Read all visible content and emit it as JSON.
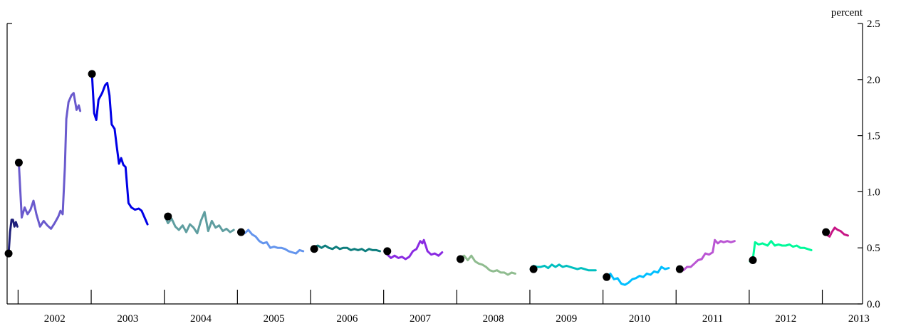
{
  "chart_data": {
    "type": "line",
    "title": "",
    "xlabel": "",
    "ylabel": "percent",
    "y_axis_side": "right",
    "ylim": [
      0.0,
      2.5
    ],
    "y_ticks": [
      0.0,
      0.5,
      1.0,
      1.5,
      2.0,
      2.5
    ],
    "y_tick_labels": [
      "0.0",
      "0.5",
      "1.0",
      "1.5",
      "2.0",
      "2.5"
    ],
    "xlim": [
      2001.6,
      2013.3
    ],
    "x_tick_labels": [
      "2002",
      "2003",
      "2004",
      "2005",
      "2006",
      "2007",
      "2008",
      "2009",
      "2010",
      "2011",
      "2012",
      "2013"
    ],
    "x_year_boundaries": [
      2001.75,
      2002.75,
      2003.75,
      2004.75,
      2005.75,
      2006.75,
      2007.75,
      2008.75,
      2009.75,
      2010.75,
      2011.75,
      2012.75
    ],
    "grid": false,
    "legend": "none",
    "series": [
      {
        "color": "#1f1f7a",
        "points": [
          [
            2001.62,
            0.45
          ],
          [
            2001.64,
            0.64
          ],
          [
            2001.66,
            0.75
          ],
          [
            2001.68,
            0.75
          ],
          [
            2001.7,
            0.69
          ],
          [
            2001.72,
            0.73
          ],
          [
            2001.74,
            0.69
          ]
        ]
      },
      {
        "color": "#6a5acd",
        "points": [
          [
            2001.76,
            1.26
          ],
          [
            2001.8,
            0.77
          ],
          [
            2001.84,
            0.86
          ],
          [
            2001.88,
            0.8
          ],
          [
            2001.92,
            0.84
          ],
          [
            2001.96,
            0.92
          ],
          [
            2002.0,
            0.8
          ],
          [
            2002.05,
            0.69
          ],
          [
            2002.1,
            0.74
          ],
          [
            2002.15,
            0.7
          ],
          [
            2002.2,
            0.67
          ],
          [
            2002.25,
            0.72
          ],
          [
            2002.3,
            0.78
          ],
          [
            2002.33,
            0.83
          ],
          [
            2002.36,
            0.8
          ],
          [
            2002.39,
            1.22
          ],
          [
            2002.41,
            1.65
          ],
          [
            2002.44,
            1.8
          ],
          [
            2002.48,
            1.86
          ],
          [
            2002.51,
            1.88
          ],
          [
            2002.55,
            1.73
          ],
          [
            2002.58,
            1.77
          ],
          [
            2002.6,
            1.72
          ]
        ]
      },
      {
        "color": "#0000e6",
        "points": [
          [
            2002.76,
            2.05
          ],
          [
            2002.79,
            1.7
          ],
          [
            2002.82,
            1.64
          ],
          [
            2002.85,
            1.82
          ],
          [
            2002.9,
            1.88
          ],
          [
            2002.94,
            1.95
          ],
          [
            2002.97,
            1.97
          ],
          [
            2003.0,
            1.86
          ],
          [
            2003.03,
            1.6
          ],
          [
            2003.07,
            1.56
          ],
          [
            2003.1,
            1.4
          ],
          [
            2003.13,
            1.25
          ],
          [
            2003.16,
            1.3
          ],
          [
            2003.19,
            1.24
          ],
          [
            2003.22,
            1.22
          ],
          [
            2003.26,
            0.9
          ],
          [
            2003.3,
            0.86
          ],
          [
            2003.35,
            0.84
          ],
          [
            2003.4,
            0.85
          ],
          [
            2003.44,
            0.83
          ],
          [
            2003.48,
            0.77
          ],
          [
            2003.52,
            0.71
          ]
        ]
      },
      {
        "color": "#5f9ea0",
        "points": [
          [
            2003.76,
            0.78
          ],
          [
            2003.8,
            0.72
          ],
          [
            2003.85,
            0.76
          ],
          [
            2003.9,
            0.69
          ],
          [
            2003.95,
            0.66
          ],
          [
            2004.0,
            0.7
          ],
          [
            2004.05,
            0.64
          ],
          [
            2004.1,
            0.71
          ],
          [
            2004.15,
            0.68
          ],
          [
            2004.2,
            0.63
          ],
          [
            2004.25,
            0.74
          ],
          [
            2004.3,
            0.82
          ],
          [
            2004.35,
            0.65
          ],
          [
            2004.4,
            0.74
          ],
          [
            2004.45,
            0.68
          ],
          [
            2004.5,
            0.7
          ],
          [
            2004.55,
            0.65
          ],
          [
            2004.6,
            0.67
          ],
          [
            2004.65,
            0.64
          ],
          [
            2004.7,
            0.66
          ]
        ]
      },
      {
        "color": "#6495ed",
        "points": [
          [
            2004.76,
            0.64
          ],
          [
            2004.8,
            0.66
          ],
          [
            2004.85,
            0.63
          ],
          [
            2004.9,
            0.66
          ],
          [
            2004.95,
            0.62
          ],
          [
            2005.0,
            0.6
          ],
          [
            2005.05,
            0.56
          ],
          [
            2005.1,
            0.54
          ],
          [
            2005.15,
            0.55
          ],
          [
            2005.2,
            0.5
          ],
          [
            2005.25,
            0.51
          ],
          [
            2005.3,
            0.5
          ],
          [
            2005.35,
            0.5
          ],
          [
            2005.4,
            0.49
          ],
          [
            2005.45,
            0.47
          ],
          [
            2005.5,
            0.46
          ],
          [
            2005.55,
            0.45
          ],
          [
            2005.6,
            0.48
          ],
          [
            2005.65,
            0.47
          ]
        ]
      },
      {
        "color": "#0e7e7e",
        "points": [
          [
            2005.76,
            0.49
          ],
          [
            2005.8,
            0.51
          ],
          [
            2005.85,
            0.52
          ],
          [
            2005.9,
            0.5
          ],
          [
            2005.95,
            0.52
          ],
          [
            2006.0,
            0.5
          ],
          [
            2006.05,
            0.49
          ],
          [
            2006.1,
            0.51
          ],
          [
            2006.15,
            0.49
          ],
          [
            2006.2,
            0.5
          ],
          [
            2006.25,
            0.5
          ],
          [
            2006.3,
            0.48
          ],
          [
            2006.35,
            0.49
          ],
          [
            2006.4,
            0.48
          ],
          [
            2006.45,
            0.49
          ],
          [
            2006.5,
            0.47
          ],
          [
            2006.55,
            0.49
          ],
          [
            2006.6,
            0.48
          ],
          [
            2006.65,
            0.48
          ],
          [
            2006.7,
            0.47
          ]
        ]
      },
      {
        "color": "#8a2be2",
        "points": [
          [
            2006.76,
            0.47
          ],
          [
            2006.8,
            0.44
          ],
          [
            2006.85,
            0.41
          ],
          [
            2006.9,
            0.43
          ],
          [
            2006.95,
            0.41
          ],
          [
            2007.0,
            0.42
          ],
          [
            2007.05,
            0.4
          ],
          [
            2007.1,
            0.42
          ],
          [
            2007.15,
            0.47
          ],
          [
            2007.2,
            0.49
          ],
          [
            2007.25,
            0.56
          ],
          [
            2007.28,
            0.54
          ],
          [
            2007.3,
            0.57
          ],
          [
            2007.35,
            0.47
          ],
          [
            2007.4,
            0.44
          ],
          [
            2007.45,
            0.45
          ],
          [
            2007.5,
            0.43
          ],
          [
            2007.55,
            0.46
          ]
        ]
      },
      {
        "color": "#8fbc8f",
        "points": [
          [
            2007.76,
            0.4
          ],
          [
            2007.8,
            0.41
          ],
          [
            2007.85,
            0.43
          ],
          [
            2007.9,
            0.39
          ],
          [
            2007.95,
            0.43
          ],
          [
            2008.0,
            0.38
          ],
          [
            2008.05,
            0.36
          ],
          [
            2008.1,
            0.35
          ],
          [
            2008.15,
            0.33
          ],
          [
            2008.2,
            0.3
          ],
          [
            2008.25,
            0.29
          ],
          [
            2008.3,
            0.3
          ],
          [
            2008.35,
            0.28
          ],
          [
            2008.4,
            0.28
          ],
          [
            2008.45,
            0.26
          ],
          [
            2008.5,
            0.28
          ],
          [
            2008.55,
            0.27
          ]
        ]
      },
      {
        "color": "#00bfbf",
        "points": [
          [
            2008.76,
            0.31
          ],
          [
            2008.8,
            0.34
          ],
          [
            2008.85,
            0.33
          ],
          [
            2008.9,
            0.33
          ],
          [
            2008.95,
            0.34
          ],
          [
            2009.0,
            0.32
          ],
          [
            2009.05,
            0.35
          ],
          [
            2009.1,
            0.33
          ],
          [
            2009.15,
            0.35
          ],
          [
            2009.2,
            0.33
          ],
          [
            2009.25,
            0.34
          ],
          [
            2009.3,
            0.33
          ],
          [
            2009.35,
            0.32
          ],
          [
            2009.4,
            0.31
          ],
          [
            2009.45,
            0.32
          ],
          [
            2009.5,
            0.31
          ],
          [
            2009.55,
            0.3
          ],
          [
            2009.6,
            0.3
          ],
          [
            2009.65,
            0.3
          ]
        ]
      },
      {
        "color": "#00bfff",
        "points": [
          [
            2009.76,
            0.24
          ],
          [
            2009.8,
            0.22
          ],
          [
            2009.85,
            0.27
          ],
          [
            2009.9,
            0.22
          ],
          [
            2009.95,
            0.23
          ],
          [
            2010.0,
            0.18
          ],
          [
            2010.05,
            0.17
          ],
          [
            2010.1,
            0.19
          ],
          [
            2010.15,
            0.22
          ],
          [
            2010.2,
            0.23
          ],
          [
            2010.25,
            0.25
          ],
          [
            2010.3,
            0.24
          ],
          [
            2010.35,
            0.27
          ],
          [
            2010.4,
            0.26
          ],
          [
            2010.45,
            0.29
          ],
          [
            2010.5,
            0.28
          ],
          [
            2010.55,
            0.33
          ],
          [
            2010.6,
            0.31
          ],
          [
            2010.65,
            0.32
          ]
        ]
      },
      {
        "color": "#ba55d3",
        "points": [
          [
            2010.76,
            0.31
          ],
          [
            2010.8,
            0.32
          ],
          [
            2010.85,
            0.3
          ],
          [
            2010.9,
            0.33
          ],
          [
            2010.95,
            0.33
          ],
          [
            2011.0,
            0.36
          ],
          [
            2011.05,
            0.39
          ],
          [
            2011.1,
            0.4
          ],
          [
            2011.15,
            0.45
          ],
          [
            2011.2,
            0.44
          ],
          [
            2011.25,
            0.46
          ],
          [
            2011.28,
            0.57
          ],
          [
            2011.32,
            0.54
          ],
          [
            2011.36,
            0.56
          ],
          [
            2011.4,
            0.55
          ],
          [
            2011.45,
            0.56
          ],
          [
            2011.5,
            0.55
          ],
          [
            2011.55,
            0.56
          ]
        ]
      },
      {
        "color": "#00fa9a",
        "points": [
          [
            2011.76,
            0.38
          ],
          [
            2011.8,
            0.4
          ],
          [
            2011.83,
            0.55
          ],
          [
            2011.88,
            0.53
          ],
          [
            2011.93,
            0.54
          ],
          [
            2012.0,
            0.52
          ],
          [
            2012.05,
            0.56
          ],
          [
            2012.1,
            0.52
          ],
          [
            2012.15,
            0.53
          ],
          [
            2012.2,
            0.52
          ],
          [
            2012.25,
            0.52
          ],
          [
            2012.3,
            0.53
          ],
          [
            2012.35,
            0.51
          ],
          [
            2012.4,
            0.52
          ],
          [
            2012.45,
            0.5
          ],
          [
            2012.5,
            0.5
          ],
          [
            2012.55,
            0.49
          ],
          [
            2012.6,
            0.48
          ]
        ]
      },
      {
        "color": "#c71585",
        "points": [
          [
            2012.76,
            0.64
          ],
          [
            2012.8,
            0.62
          ],
          [
            2012.85,
            0.6
          ],
          [
            2012.88,
            0.64
          ],
          [
            2012.92,
            0.68
          ],
          [
            2012.96,
            0.66
          ],
          [
            2013.0,
            0.65
          ],
          [
            2013.05,
            0.62
          ],
          [
            2013.1,
            0.61
          ]
        ]
      }
    ],
    "markers": {
      "name": "year-start",
      "color": "#000000",
      "points": [
        [
          2001.62,
          0.45
        ],
        [
          2001.76,
          1.26
        ],
        [
          2002.76,
          2.05
        ],
        [
          2003.8,
          0.78
        ],
        [
          2004.8,
          0.64
        ],
        [
          2005.8,
          0.49
        ],
        [
          2006.8,
          0.47
        ],
        [
          2007.8,
          0.4
        ],
        [
          2008.8,
          0.31
        ],
        [
          2009.8,
          0.24
        ],
        [
          2010.8,
          0.31
        ],
        [
          2011.8,
          0.39
        ],
        [
          2012.8,
          0.64
        ]
      ]
    }
  }
}
